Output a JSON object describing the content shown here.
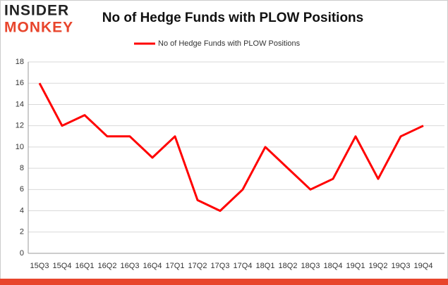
{
  "logo": {
    "top": "INSIDER",
    "bottom": "MONKEY"
  },
  "chart_data": {
    "type": "line",
    "title": "No of Hedge Funds with PLOW Positions",
    "categories": [
      "15Q3",
      "15Q4",
      "16Q1",
      "16Q2",
      "16Q3",
      "16Q4",
      "17Q1",
      "17Q2",
      "17Q3",
      "17Q4",
      "18Q1",
      "18Q2",
      "18Q3",
      "18Q4",
      "19Q1",
      "19Q2",
      "19Q3",
      "19Q4"
    ],
    "series": [
      {
        "name": "No of Hedge Funds with PLOW Positions",
        "color": "#ff0000",
        "values": [
          16,
          12,
          13,
          11,
          11,
          9,
          11,
          5,
          4,
          6,
          10,
          8,
          6,
          7,
          11,
          7,
          11,
          12
        ]
      }
    ],
    "ylim": [
      0,
      18
    ],
    "yticks": [
      0,
      2,
      4,
      6,
      8,
      10,
      12,
      14,
      16,
      18
    ],
    "grid": true,
    "legend": "top"
  }
}
